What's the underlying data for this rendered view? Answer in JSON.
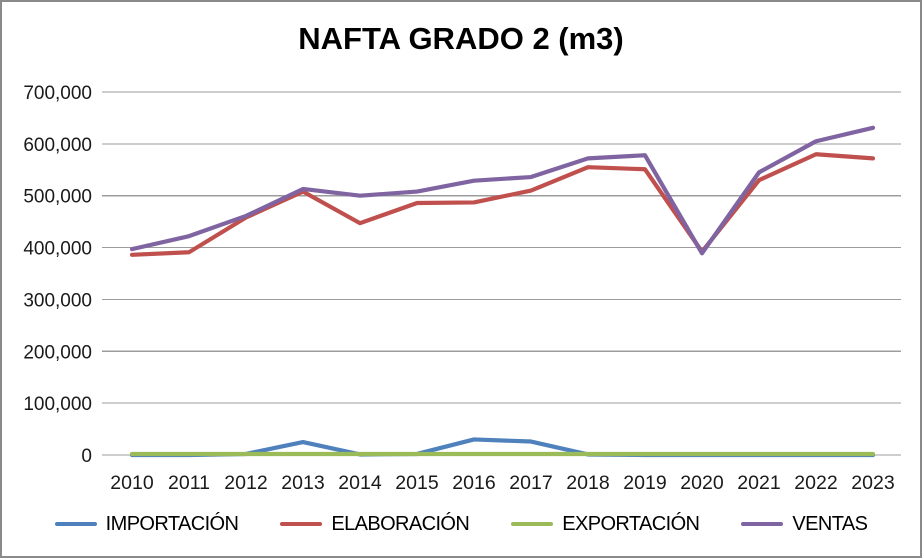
{
  "chart_data": {
    "type": "line",
    "title": "NAFTA GRADO 2 (m3)",
    "xlabel": "",
    "ylabel": "",
    "categories": [
      "2010",
      "2011",
      "2012",
      "2013",
      "2014",
      "2015",
      "2016",
      "2017",
      "2018",
      "2019",
      "2020",
      "2021",
      "2022",
      "2023"
    ],
    "series": [
      {
        "name": "IMPORTACIÓN",
        "color": "#4F81BD",
        "values": [
          0,
          0,
          2000,
          25000,
          1000,
          2000,
          30000,
          26000,
          1000,
          0,
          0,
          0,
          0,
          0
        ]
      },
      {
        "name": "ELABORACIÓN",
        "color": "#C0504D",
        "values": [
          386000,
          391000,
          458000,
          508000,
          447000,
          486000,
          487000,
          510000,
          555000,
          551000,
          392000,
          530000,
          580000,
          572000
        ]
      },
      {
        "name": "EXPORTACIÓN",
        "color": "#9BBB59",
        "values": [
          2000,
          2000,
          2000,
          2000,
          2000,
          2000,
          2000,
          2000,
          2000,
          2000,
          2000,
          2000,
          2000,
          2000
        ]
      },
      {
        "name": "VENTAS",
        "color": "#8064A2",
        "values": [
          397000,
          422000,
          461000,
          513000,
          500000,
          508000,
          529000,
          536000,
          572000,
          578000,
          389000,
          545000,
          605000,
          631000
        ]
      }
    ],
    "ylim": [
      0,
      700000
    ],
    "ytick_interval": 100000,
    "ytick_labels": [
      "0",
      "100,000",
      "200,000",
      "300,000",
      "400,000",
      "500,000",
      "600,000",
      "700,000"
    ],
    "grid": "horizontal",
    "legend_position": "bottom"
  },
  "styles": {
    "gridline_color": "#9c9c9c",
    "axis_text_color": "#1a1a1a",
    "frame_border_color": "#8a8a8a",
    "line_width": 4.2
  }
}
